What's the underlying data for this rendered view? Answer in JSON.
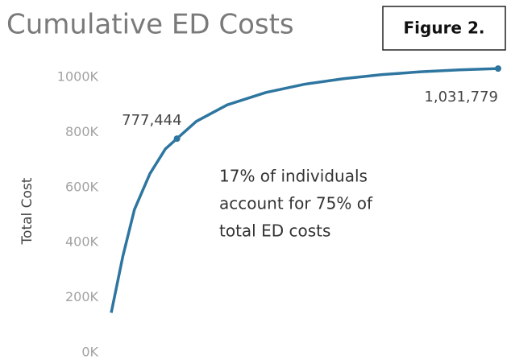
{
  "chart_data": {
    "type": "line",
    "title": "Cumulative ED Costs",
    "figure_label": "Figure 2.",
    "ylabel": "Total Cost",
    "annotation": [
      "17% of individuals",
      "account for 75% of",
      "total ED costs"
    ],
    "x": [
      0,
      3,
      6,
      10,
      14,
      17,
      22,
      30,
      40,
      50,
      60,
      70,
      80,
      90,
      100
    ],
    "series": [
      {
        "name": "Total Cost",
        "color": "#2e76a0",
        "values": [
          145000,
          350000,
          520000,
          650000,
          740000,
          777444,
          840000,
          900000,
          945000,
          975000,
          995000,
          1010000,
          1020000,
          1027000,
          1031779
        ],
        "value_labels": [
          null,
          null,
          null,
          null,
          null,
          "777,444",
          null,
          null,
          null,
          null,
          null,
          null,
          null,
          null,
          "1,031,779"
        ]
      }
    ],
    "xlim": [
      0,
      100
    ],
    "ylim": [
      0,
      1000000
    ],
    "yticks": [
      {
        "value": 0,
        "label": "0K"
      },
      {
        "value": 200000,
        "label": "200K"
      },
      {
        "value": 400000,
        "label": "400K"
      },
      {
        "value": 600000,
        "label": "600K"
      },
      {
        "value": 800000,
        "label": "800K"
      },
      {
        "value": 1000000,
        "label": "1000K"
      }
    ],
    "grid": false
  }
}
